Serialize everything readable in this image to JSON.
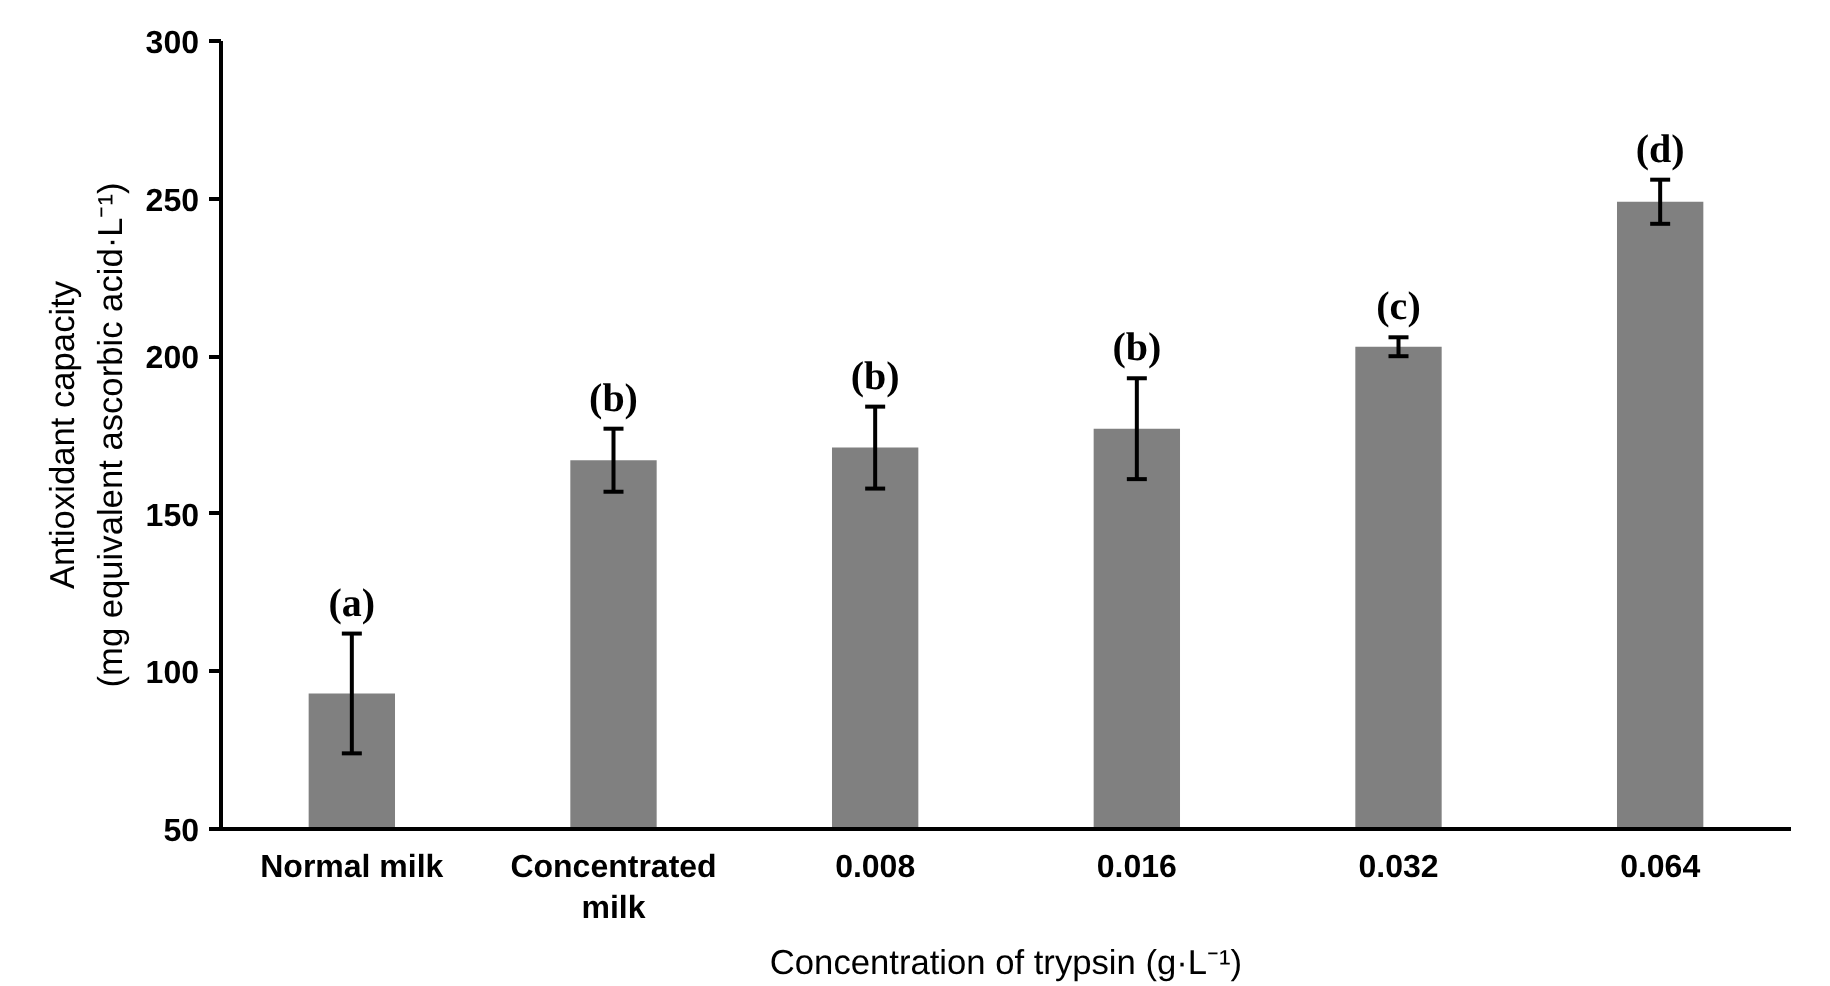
{
  "chart_data": {
    "type": "bar",
    "xlabel": "Concentration of trypsin (g·L⁻¹)",
    "ylabel": "Antioxidant capacity\n(mg equivalent ascorbic acid·L⁻¹)",
    "categories": [
      "Normal milk",
      "Concentrated milk",
      "0.008",
      "0.016",
      "0.032",
      "0.064"
    ],
    "values": [
      93,
      167,
      171,
      177,
      203,
      249
    ],
    "errors": [
      19,
      10,
      13,
      16,
      3,
      7
    ],
    "color": "#808080",
    "ylim": [
      50,
      300
    ],
    "yticks": [
      50,
      100,
      150,
      200,
      250,
      300
    ],
    "grid": false,
    "annotations": [
      {
        "text": "(a)",
        "x": "Normal milk",
        "y": 112
      },
      {
        "text": "(b)",
        "x": "Concentrated milk",
        "y": 177
      },
      {
        "text": "(b)",
        "x": "0.008",
        "y": 184
      },
      {
        "text": "(b)",
        "x": "0.016",
        "y": 193
      },
      {
        "text": "(c)",
        "x": "0.032",
        "y": 206
      },
      {
        "text": "(d)",
        "x": "0.064",
        "y": 256
      }
    ]
  }
}
